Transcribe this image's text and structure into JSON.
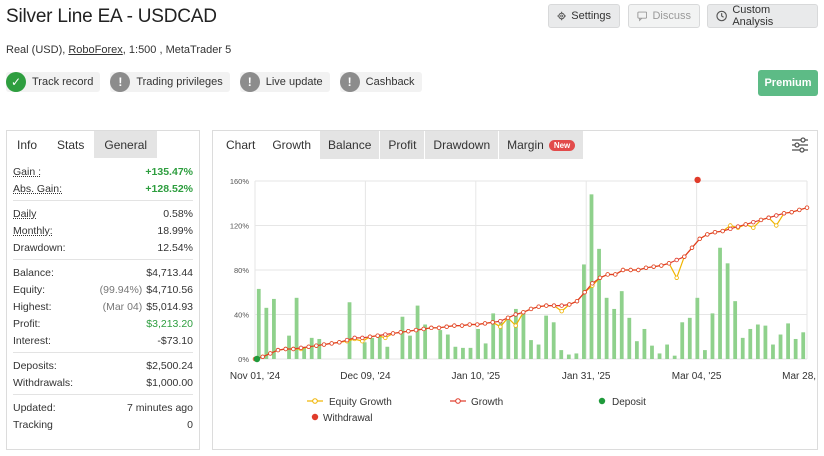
{
  "header": {
    "title": "Silver Line EA - USDCAD",
    "account_type": "Real (USD),",
    "broker": "RoboForex",
    "details": ", 1:500 , MetaTrader 5",
    "buttons": {
      "settings": "Settings",
      "discuss": "Discuss",
      "custom_analysis": "Custom Analysis"
    }
  },
  "badges": [
    {
      "label": "Track record",
      "icon": "check-icon",
      "status": "ok"
    },
    {
      "label": "Trading privileges",
      "icon": "exclamation-icon",
      "status": "warn"
    },
    {
      "label": "Live update",
      "icon": "exclamation-icon",
      "status": "warn"
    },
    {
      "label": "Cashback",
      "icon": "exclamation-icon",
      "status": "warn"
    }
  ],
  "premium_label": "Premium",
  "left_tabs": [
    "Info",
    "Stats",
    "General"
  ],
  "stats": {
    "gain": {
      "label": "Gain :",
      "value": "+135.47%"
    },
    "abs_gain": {
      "label": "Abs. Gain:",
      "value": "+128.52%"
    },
    "daily": {
      "label": "Daily",
      "value": "0.58%"
    },
    "monthly": {
      "label": "Monthly:",
      "value": "18.99%"
    },
    "drawdown": {
      "label": "Drawdown:",
      "value": "12.54%"
    },
    "balance": {
      "label": "Balance:",
      "value": "$4,713.44"
    },
    "equity": {
      "label": "Equity:",
      "pre": "(99.94%)",
      "value": "$4,710.56"
    },
    "highest": {
      "label": "Highest:",
      "pre": "(Mar 04)",
      "value": "$5,014.93"
    },
    "profit": {
      "label": "Profit:",
      "value": "$3,213.20"
    },
    "interest": {
      "label": "Interest:",
      "value": "-$73.10"
    },
    "deposits": {
      "label": "Deposits:",
      "value": "$2,500.24"
    },
    "withdrawals": {
      "label": "Withdrawals:",
      "value": "$1,000.00"
    },
    "updated": {
      "label": "Updated:",
      "value": "7 minutes ago"
    },
    "tracking": {
      "label": "Tracking",
      "value": "0"
    }
  },
  "chart_tabs": {
    "chart": "Chart",
    "growth": "Growth",
    "balance": "Balance",
    "profit": "Profit",
    "drawdown": "Drawdown",
    "margin": "Margin",
    "new_badge": "New"
  },
  "chart_data": {
    "type": "line",
    "y_ticks": [
      "0%",
      "40%",
      "80%",
      "120%",
      "160%"
    ],
    "x_ticks": [
      "Nov 01, '24",
      "Dec 09, '24",
      "Jan 10, '25",
      "Jan 31, '25",
      "Mar 04, '25",
      "Mar 28, '25"
    ],
    "ylim": [
      0,
      160
    ],
    "legend": [
      "Equity Growth",
      "Growth",
      "Deposit",
      "Withdrawal"
    ],
    "colors": {
      "equity": "#f0b400",
      "growth": "#e03b2a",
      "deposit": "#1f9a3b",
      "withdrawal": "#e03b2a",
      "bars": "#8fd18c"
    },
    "growth": [
      0,
      2,
      5,
      8,
      9,
      9,
      10,
      11,
      12,
      13,
      14,
      15,
      17,
      19,
      19,
      20,
      21,
      22,
      23,
      24,
      25,
      26,
      27,
      28,
      28,
      29,
      30,
      30,
      31,
      31,
      32,
      33,
      34,
      37,
      40,
      42,
      45,
      47,
      48,
      48,
      48,
      49,
      52,
      60,
      68,
      73,
      76,
      76,
      80,
      80,
      80,
      82,
      83,
      84,
      86,
      89,
      92,
      100,
      108,
      112,
      114,
      115,
      117,
      119,
      121,
      123,
      125,
      127,
      129,
      131,
      132,
      134,
      136
    ],
    "equity": [
      0,
      2,
      5,
      8,
      9,
      9,
      9,
      11,
      12,
      13,
      14,
      15,
      16,
      18,
      16,
      20,
      21,
      19,
      23,
      24,
      25,
      26,
      27,
      28,
      28,
      29,
      30,
      30,
      31,
      31,
      32,
      33,
      29,
      37,
      30,
      42,
      45,
      47,
      48,
      48,
      43,
      49,
      52,
      60,
      66,
      73,
      76,
      76,
      80,
      80,
      80,
      82,
      83,
      84,
      86,
      73,
      92,
      100,
      108,
      112,
      114,
      115,
      120,
      118,
      121,
      118,
      125,
      127,
      120,
      131,
      132,
      134,
      136
    ],
    "bars": [
      63,
      46,
      54,
      0,
      21,
      55,
      11,
      19,
      18,
      0,
      0,
      0,
      51,
      0,
      15,
      19,
      22,
      11,
      0,
      38,
      21,
      48,
      31,
      0,
      26,
      22,
      11,
      10,
      10,
      27,
      14,
      41,
      33,
      35,
      45,
      42,
      17,
      13,
      39,
      33,
      8,
      4,
      5,
      85,
      148,
      99,
      55,
      45,
      61,
      37,
      16,
      27,
      12,
      5,
      13,
      3,
      33,
      37,
      55,
      8,
      41,
      100,
      86,
      52,
      19,
      27,
      31,
      30,
      13,
      22,
      32,
      18,
      24
    ],
    "deposit_value": 0,
    "withdrawal_value": 161
  }
}
